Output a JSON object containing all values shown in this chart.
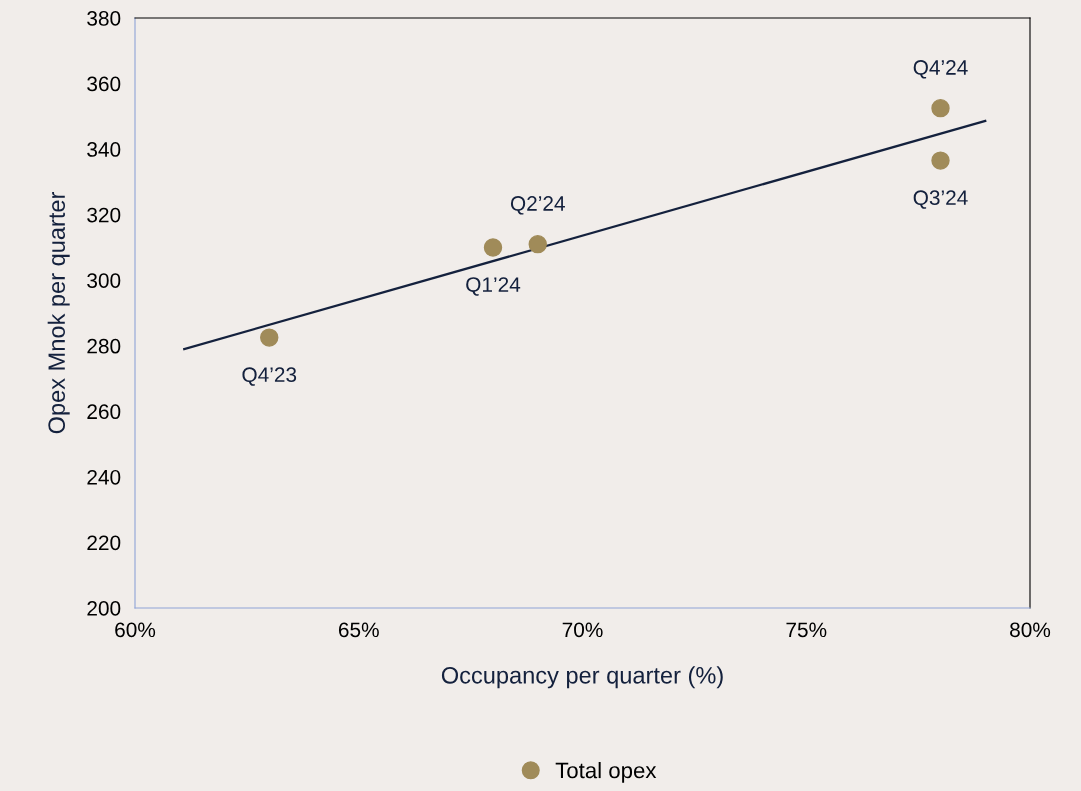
{
  "chart_data": {
    "type": "scatter",
    "xlabel": "Occupancy per quarter (%)",
    "ylabel": "Opex Mnok per quarter",
    "series": [
      {
        "name": "Total opex",
        "marker": "circle",
        "color": "#a08b59",
        "x": [
          63,
          68,
          69,
          78,
          78
        ],
        "values": [
          282.5,
          310,
          311,
          336.5,
          352.5
        ]
      },
      {
        "type": "line",
        "color": "#14213d",
        "x": [
          61.1,
          79
        ],
        "values": [
          279,
          348.6
        ]
      }
    ],
    "annotations": [
      {
        "text": "Q4’23",
        "x": 63,
        "y": 282.5
      },
      {
        "text": "Q1’24",
        "x": 68,
        "y": 310
      },
      {
        "text": "Q2’24",
        "x": 69,
        "y": 311
      },
      {
        "text": "Q3’24",
        "x": 78,
        "y": 336.5
      },
      {
        "text": "Q4’24",
        "x": 78,
        "y": 352.5
      }
    ],
    "xlim": [
      60,
      80
    ],
    "xticks": [
      {
        "value": 60,
        "label": "60%"
      },
      {
        "value": 65,
        "label": "65%"
      },
      {
        "value": 70,
        "label": "70%"
      },
      {
        "value": 75,
        "label": "75%"
      },
      {
        "value": 80,
        "label": "80%"
      }
    ],
    "ylim": [
      200,
      380
    ],
    "yticks": [
      200,
      220,
      240,
      260,
      280,
      300,
      320,
      340,
      360,
      380
    ],
    "grid": false,
    "legend": "bottom"
  }
}
